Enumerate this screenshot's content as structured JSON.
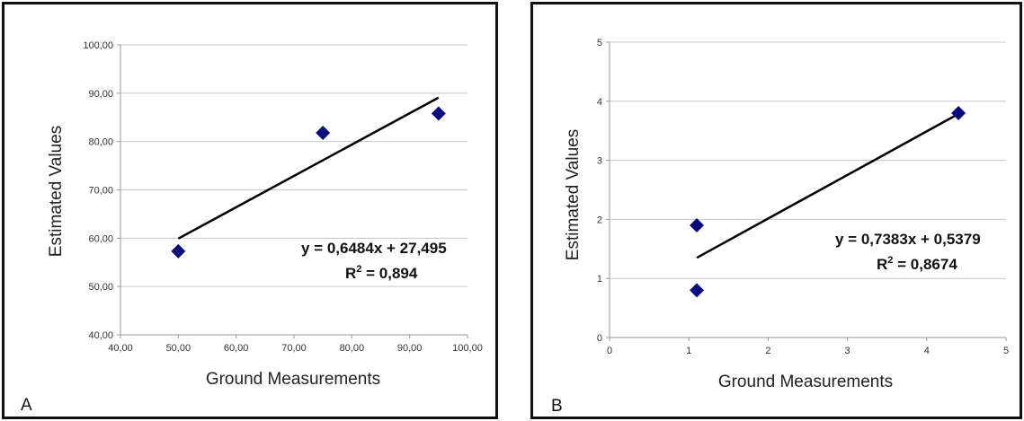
{
  "chart_data": [
    {
      "panel_label": "A",
      "type": "scatter",
      "xlabel": "Ground Measurements",
      "ylabel": "Estimated Values",
      "xlim": [
        40,
        100
      ],
      "ylim": [
        40,
        100
      ],
      "x_ticks": [
        "40,00",
        "50,00",
        "60,00",
        "70,00",
        "80,00",
        "90,00",
        "100,00"
      ],
      "y_ticks": [
        "40,00",
        "50,00",
        "60,00",
        "70,00",
        "80,00",
        "90,00",
        "100,00"
      ],
      "points": [
        {
          "x": 50,
          "y": 57.3
        },
        {
          "x": 75,
          "y": 81.8
        },
        {
          "x": 95,
          "y": 85.8
        }
      ],
      "trendline": {
        "slope": 0.6484,
        "intercept": 27.495,
        "x_range": [
          50,
          95
        ]
      },
      "equation": "y = 0,6484x + 27,495",
      "r2_prefix": "R",
      "r2_sup": "2",
      "r2_value": " = 0,894",
      "grid": "horizontal",
      "marker_color": "#0a0a80",
      "line_color": "#000000"
    },
    {
      "panel_label": "B",
      "type": "scatter",
      "xlabel": "Ground Measurements",
      "ylabel": "Estimated Values",
      "xlim": [
        0,
        5
      ],
      "ylim": [
        0,
        5
      ],
      "x_ticks": [
        "0",
        "1",
        "2",
        "3",
        "4",
        "5"
      ],
      "y_ticks": [
        "0",
        "1",
        "2",
        "3",
        "4",
        "5"
      ],
      "points": [
        {
          "x": 1.1,
          "y": 1.9
        },
        {
          "x": 1.1,
          "y": 0.8
        },
        {
          "x": 4.4,
          "y": 3.8
        }
      ],
      "trendline": {
        "slope": 0.7383,
        "intercept": 0.5379,
        "x_range": [
          1.1,
          4.4
        ]
      },
      "equation": "y = 0,7383x + 0,5379",
      "r2_prefix": "R",
      "r2_sup": "2",
      "r2_value": " = 0,8674",
      "grid": "horizontal",
      "marker_color": "#0a0a80",
      "line_color": "#000000"
    }
  ]
}
